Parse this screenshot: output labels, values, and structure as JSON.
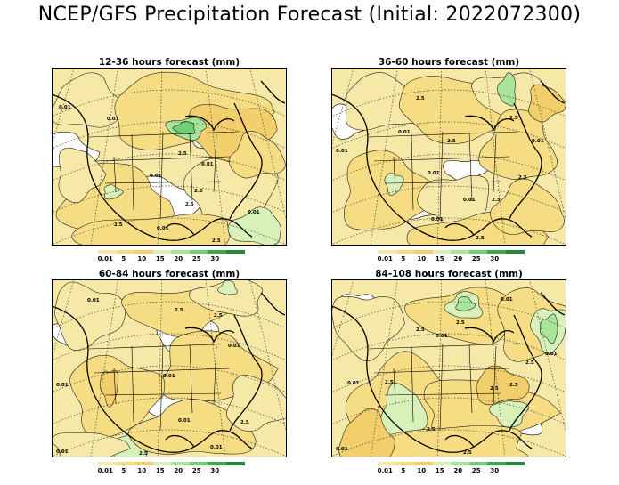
{
  "title": "NCEP/GFS Precipitation Forecast (Initial: 2022072300)",
  "legend": {
    "labels": [
      "0.01",
      "5",
      "10",
      "15",
      "20",
      "25",
      "30"
    ],
    "colors": [
      "#f6e8a6",
      "#f6dc82",
      "#f2cf6a",
      "#d8f1b8",
      "#a8e49a",
      "#6fcf73",
      "#3aa94b",
      "#1f8b34"
    ]
  },
  "panels": [
    {
      "title": "12-36 hours forecast (mm)",
      "labels": [
        "0.01",
        "0.01",
        "0.01",
        "2.5",
        "2.5",
        "2.5",
        "2.5",
        "0.01",
        "0.01",
        "2.5",
        "0.01"
      ]
    },
    {
      "title": "36-60 hours forecast (mm)",
      "labels": [
        "0.01",
        "0.01",
        "2.5",
        "2.5",
        "0.01",
        "0.01",
        "2.5",
        "0.01",
        "2.5",
        "2.5",
        "0.01",
        "2.5"
      ]
    },
    {
      "title": "60-84 hours forecast (mm)",
      "labels": [
        "0.01",
        "0.01",
        "0.01",
        "2.5",
        "2.5",
        "0.01",
        "0.01",
        "2.5",
        "2.5",
        "0.01",
        "0.01"
      ]
    },
    {
      "title": "84-108 hours forecast (mm)",
      "labels": [
        "0.01",
        "2.5",
        "2.5",
        "0.01",
        "2.5",
        "0.01",
        "2.5",
        "2.5",
        "2.5",
        "2.5",
        "0.01",
        "2.5",
        "0.01"
      ]
    }
  ]
}
